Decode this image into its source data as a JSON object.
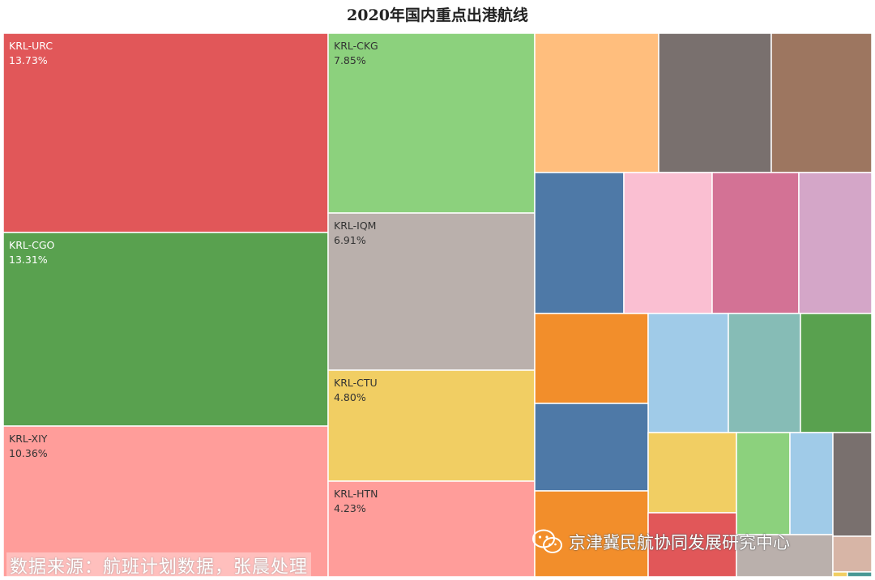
{
  "chart_data": {
    "type": "treemap",
    "title": "2020年国内重点出港航线",
    "labeled": [
      {
        "name": "KRL-URC",
        "value": 13.73,
        "value_label": "13.73%",
        "color": "#E15759"
      },
      {
        "name": "KRL-CGO",
        "value": 13.31,
        "value_label": "13.31%",
        "color": "#59A14F"
      },
      {
        "name": "KRL-XIY",
        "value": 10.36,
        "value_label": "10.36%",
        "color": "#FF9D9A"
      },
      {
        "name": "KRL-CKG",
        "value": 7.85,
        "value_label": "7.85%",
        "color": "#8CD17D"
      },
      {
        "name": "KRL-IQM",
        "value": 6.91,
        "value_label": "6.91%",
        "color": "#BAB0AC"
      },
      {
        "name": "KRL-CTU",
        "value": 4.8,
        "value_label": "4.80%",
        "color": "#F1CE63"
      },
      {
        "name": "KRL-HTN",
        "value": 4.23,
        "value_label": "4.23%",
        "color": "#FF9D9A"
      }
    ],
    "unlabeled_colors": [
      "#FFBE7D",
      "#79706E",
      "#9D7660",
      "#4E79A7",
      "#FABFD2",
      "#D37295",
      "#D4A6C8",
      "#F28E2B",
      "#A0CBE8",
      "#86BCB6",
      "#59A14F",
      "#4E79A7",
      "#F1CE63",
      "#8CD17D",
      "#A0CBE8",
      "#79706E",
      "#F28E2B",
      "#E15759",
      "#BAB0AC",
      "#D7B5A6",
      "#F1CE63",
      "#499894"
    ]
  },
  "source_note": "数据来源：航班计划数据，张晨处理",
  "watermark": {
    "text": "京津冀民航协同发展研究中心",
    "icon": "wechat-icon"
  }
}
